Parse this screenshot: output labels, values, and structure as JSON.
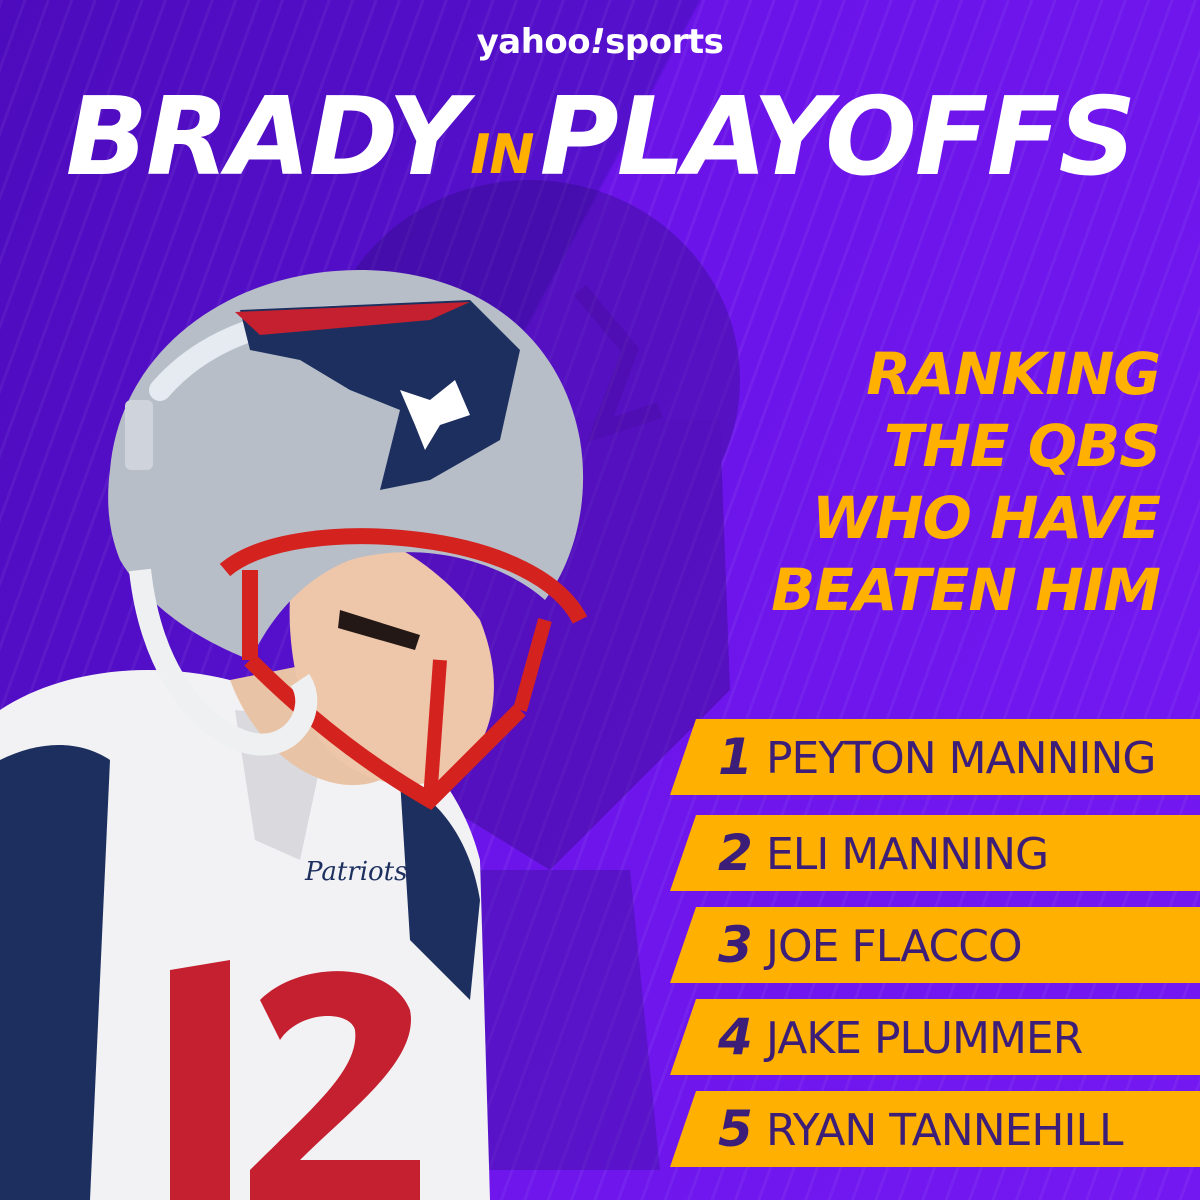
{
  "brand": {
    "logo_text": "yahoo",
    "logo_bang": "!",
    "logo_suffix": "sports"
  },
  "title": {
    "left": "BRADY",
    "middle": "IN",
    "right": "PLAYOFFS"
  },
  "heading": {
    "lines": [
      "RANKING",
      "THE QBS",
      "WHO HAVE",
      "BEATEN HIM"
    ]
  },
  "rankings": [
    {
      "rank": "1",
      "name": "PEYTON MANNING"
    },
    {
      "rank": "2",
      "name": "ELI MANNING"
    },
    {
      "rank": "3",
      "name": "JOE FLACCO"
    },
    {
      "rank": "4",
      "name": "JAKE PLUMMER"
    },
    {
      "rank": "5",
      "name": "RYAN TANNEHILL"
    }
  ],
  "player": {
    "jersey_team": "Patriots",
    "jersey_number": "12"
  },
  "colors": {
    "purple": "#6010e0",
    "gold": "#ffb000",
    "text_dark": "#3c1e78",
    "white": "#ffffff"
  }
}
